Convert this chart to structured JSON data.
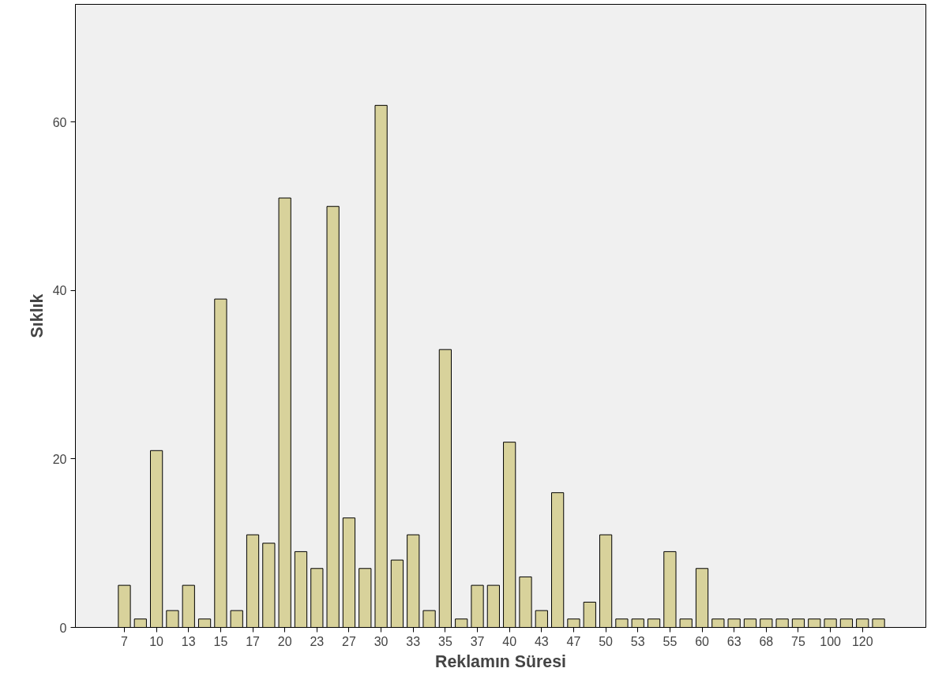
{
  "chart_data": {
    "type": "bar",
    "xlabel": "Reklamın Süresi",
    "ylabel": "Sıklık",
    "categories": [
      "7",
      null,
      "10",
      null,
      "13",
      null,
      "15",
      null,
      "17",
      null,
      "20",
      null,
      "23",
      null,
      "27",
      null,
      "30",
      null,
      "33",
      null,
      "35",
      null,
      "37",
      null,
      "40",
      null,
      "43",
      null,
      "47",
      null,
      "50",
      null,
      "53",
      null,
      "55",
      null,
      "60",
      null,
      "63",
      null,
      "68",
      null,
      "75",
      null,
      "100",
      null,
      "120",
      null
    ],
    "values": [
      5,
      1,
      21,
      2,
      5,
      1,
      39,
      2,
      11,
      10,
      51,
      9,
      7,
      50,
      13,
      7,
      62,
      8,
      11,
      2,
      33,
      1,
      5,
      5,
      22,
      6,
      2,
      16,
      1,
      3,
      11,
      1,
      1,
      1,
      9,
      1,
      7,
      1,
      1,
      1,
      1,
      1,
      1,
      1,
      1,
      1,
      1,
      1
    ],
    "color": "#d8d29b",
    "ylim": [
      0,
      74
    ],
    "yticks": [
      0,
      20,
      40,
      60
    ],
    "grid": false
  }
}
